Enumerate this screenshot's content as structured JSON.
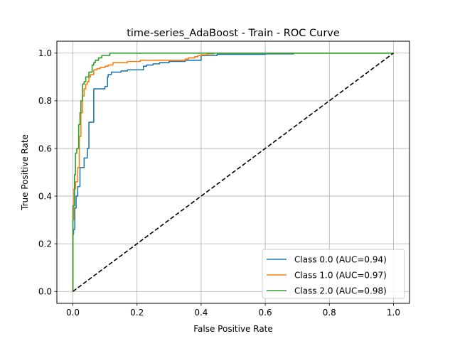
{
  "chart_data": {
    "type": "line",
    "title": "time-series_AdaBoost - Train - ROC Curve",
    "xlabel": "False Positive Rate",
    "ylabel": "True Positive Rate",
    "xlim": [
      -0.05,
      1.05
    ],
    "ylim": [
      -0.05,
      1.05
    ],
    "xticks": [
      "0.0",
      "0.2",
      "0.4",
      "0.6",
      "0.8",
      "1.0"
    ],
    "yticks": [
      "0.0",
      "0.2",
      "0.4",
      "0.6",
      "0.8",
      "1.0"
    ],
    "grid": true,
    "legend_position": "lower-right",
    "series": [
      {
        "name": "Class 0.0 (AUC=0.94)",
        "color": "#1f77b4",
        "x": [
          0.0,
          0.0,
          0.002,
          0.002,
          0.006,
          0.006,
          0.01,
          0.01,
          0.015,
          0.015,
          0.022,
          0.022,
          0.035,
          0.035,
          0.045,
          0.045,
          0.05,
          0.05,
          0.065,
          0.065,
          0.1,
          0.1,
          0.108,
          0.108,
          0.11,
          0.11,
          0.12,
          0.12,
          0.15,
          0.15,
          0.17,
          0.17,
          0.22,
          0.22,
          0.23,
          0.23,
          0.25,
          0.25,
          0.27,
          0.27,
          0.3,
          0.3,
          0.35,
          0.35,
          0.4,
          0.4,
          0.45,
          0.45,
          0.6,
          0.6,
          0.69
        ],
        "y": [
          0.0,
          0.24,
          0.24,
          0.26,
          0.26,
          0.35,
          0.35,
          0.4,
          0.4,
          0.44,
          0.44,
          0.52,
          0.52,
          0.56,
          0.56,
          0.6,
          0.6,
          0.71,
          0.71,
          0.85,
          0.85,
          0.86,
          0.86,
          0.9,
          0.9,
          0.91,
          0.91,
          0.92,
          0.92,
          0.925,
          0.925,
          0.93,
          0.93,
          0.945,
          0.945,
          0.95,
          0.95,
          0.955,
          0.955,
          0.96,
          0.96,
          0.965,
          0.965,
          0.97,
          0.97,
          0.99,
          0.99,
          0.995,
          0.995,
          0.997,
          0.997
        ]
      },
      {
        "name": "Class 1.0 (AUC=0.97)",
        "color": "#ff7f0e",
        "x": [
          0.0,
          0.0,
          0.003,
          0.003,
          0.008,
          0.008,
          0.015,
          0.015,
          0.02,
          0.02,
          0.025,
          0.025,
          0.03,
          0.03,
          0.035,
          0.035,
          0.04,
          0.04,
          0.045,
          0.045,
          0.05,
          0.05,
          0.055,
          0.055,
          0.065,
          0.065,
          0.075,
          0.075,
          0.085,
          0.085,
          0.1,
          0.1,
          0.11,
          0.11,
          0.125,
          0.125,
          0.17,
          0.17,
          0.21,
          0.21,
          0.35,
          0.35,
          0.36,
          0.36,
          0.38,
          0.38,
          0.39,
          0.39,
          0.4,
          0.4,
          0.42,
          0.42,
          0.44,
          0.44,
          1.0
        ],
        "y": [
          0.0,
          0.3,
          0.3,
          0.43,
          0.43,
          0.46,
          0.46,
          0.52,
          0.52,
          0.65,
          0.65,
          0.75,
          0.75,
          0.82,
          0.82,
          0.85,
          0.85,
          0.87,
          0.87,
          0.88,
          0.88,
          0.9,
          0.9,
          0.91,
          0.91,
          0.93,
          0.93,
          0.935,
          0.935,
          0.94,
          0.94,
          0.945,
          0.945,
          0.95,
          0.95,
          0.96,
          0.96,
          0.965,
          0.965,
          0.97,
          0.97,
          0.975,
          0.975,
          0.98,
          0.98,
          0.985,
          0.985,
          0.99,
          0.99,
          0.993,
          0.993,
          0.997,
          0.997,
          1.0,
          1.0
        ]
      },
      {
        "name": "Class 2.0 (AUC=0.98)",
        "color": "#2ca02c",
        "x": [
          0.0,
          0.0,
          0.005,
          0.005,
          0.008,
          0.008,
          0.012,
          0.012,
          0.018,
          0.018,
          0.022,
          0.022,
          0.025,
          0.025,
          0.03,
          0.03,
          0.035,
          0.035,
          0.04,
          0.04,
          0.05,
          0.05,
          0.06,
          0.06,
          0.065,
          0.065,
          0.07,
          0.07,
          0.08,
          0.08,
          0.09,
          0.09,
          0.115,
          0.115,
          1.0
        ],
        "y": [
          0.0,
          0.36,
          0.36,
          0.49,
          0.49,
          0.58,
          0.58,
          0.6,
          0.6,
          0.7,
          0.7,
          0.75,
          0.75,
          0.8,
          0.8,
          0.87,
          0.87,
          0.88,
          0.88,
          0.9,
          0.9,
          0.92,
          0.92,
          0.95,
          0.95,
          0.96,
          0.96,
          0.97,
          0.97,
          0.98,
          0.98,
          0.99,
          0.99,
          1.0,
          1.0
        ]
      },
      {
        "name": "",
        "color": "#000000",
        "dashed": true,
        "x": [
          0.0,
          1.0
        ],
        "y": [
          0.0,
          1.0
        ]
      }
    ]
  }
}
